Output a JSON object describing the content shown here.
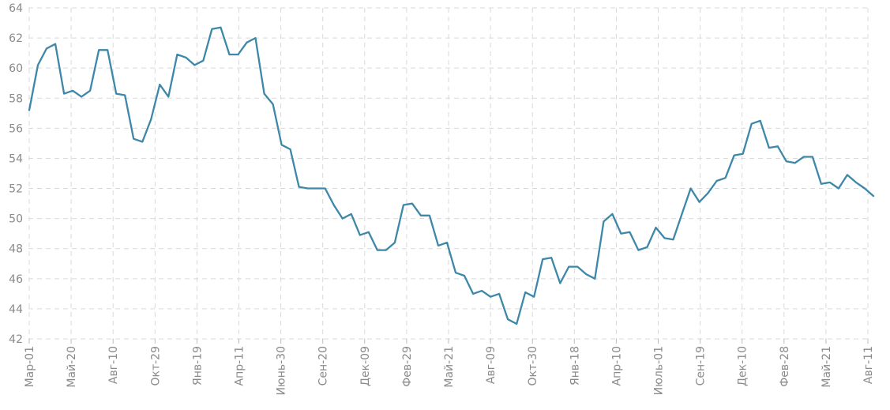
{
  "chart_data": {
    "type": "line",
    "title": "",
    "xlabel": "",
    "ylabel": "",
    "ylim": [
      42,
      64
    ],
    "y_ticks": [
      42,
      44,
      46,
      48,
      50,
      52,
      54,
      56,
      58,
      60,
      62,
      64
    ],
    "x_tick_labels": [
      "Мар-01",
      "Май-20",
      "Авг-10",
      "Окт-29",
      "Янв-19",
      "Апр-11",
      "Июнь-30",
      "Сен-20",
      "Дек-09",
      "Фев-29",
      "Май-21",
      "Авг-09",
      "Окт-30",
      "Янв-18",
      "Апр-10",
      "Июль-01",
      "Сен-19",
      "Дек-10",
      "Фев-28",
      "Май-21",
      "Авг-11"
    ],
    "grid": true,
    "line_color": "#3d87a8",
    "series": [
      {
        "values": [
          57.2,
          60.2,
          61.3,
          61.6,
          58.3,
          58.5,
          58.1,
          58.5,
          61.2,
          61.2,
          58.3,
          58.2,
          55.3,
          55.1,
          56.6,
          58.9,
          58.1,
          60.9,
          60.7,
          60.2,
          60.5,
          62.6,
          62.7,
          60.9,
          60.9,
          61.7,
          62.0,
          58.3,
          57.6,
          54.9,
          54.6,
          52.1,
          52.0,
          52.0,
          52.0,
          50.9,
          50.0,
          50.3,
          48.9,
          49.1,
          47.9,
          47.9,
          48.4,
          50.9,
          51.0,
          50.2,
          50.2,
          48.2,
          48.4,
          46.4,
          46.2,
          45.0,
          45.2,
          44.8,
          45.0,
          43.3,
          43.0,
          45.1,
          44.8,
          47.3,
          47.4,
          45.7,
          46.8,
          46.8,
          46.3,
          46.0,
          49.8,
          50.3,
          49.0,
          49.1,
          47.9,
          48.1,
          49.4,
          48.7,
          48.6,
          50.3,
          52.0,
          51.1,
          51.7,
          52.5,
          52.7,
          54.2,
          54.3,
          56.3,
          56.5,
          54.7,
          54.8,
          53.8,
          53.7,
          54.1,
          54.1,
          52.3,
          52.4,
          52.0,
          52.9,
          52.4,
          52.0,
          51.5
        ]
      }
    ]
  }
}
